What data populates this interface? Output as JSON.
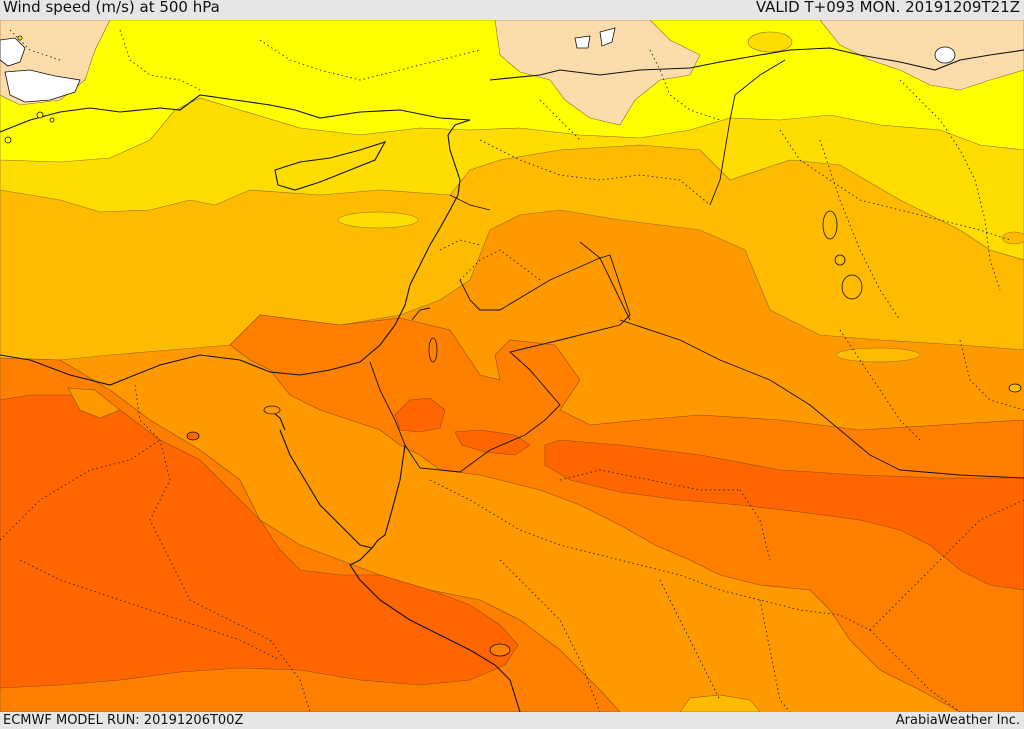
{
  "header": {
    "title": "Wind speed (m/s) at 500 hPa",
    "valid": "VALID T+093 MON. 20191209T21Z"
  },
  "footer": {
    "model_run": "ECMWF MODEL RUN: 20191206T00Z",
    "credit": "ArabiaWeather Inc."
  },
  "colors": {
    "below_15": "#ffffff",
    "band_15_20": "#ffff00",
    "band_20_25": "#ffdd00",
    "band_25_30": "#ffbb00",
    "band_30_35": "#ff9900",
    "band_35_40": "#ff7f00",
    "band_40_45": "#ff6600",
    "pale_areas": "#fbdcaa",
    "background": "#e6e6e6"
  }
}
